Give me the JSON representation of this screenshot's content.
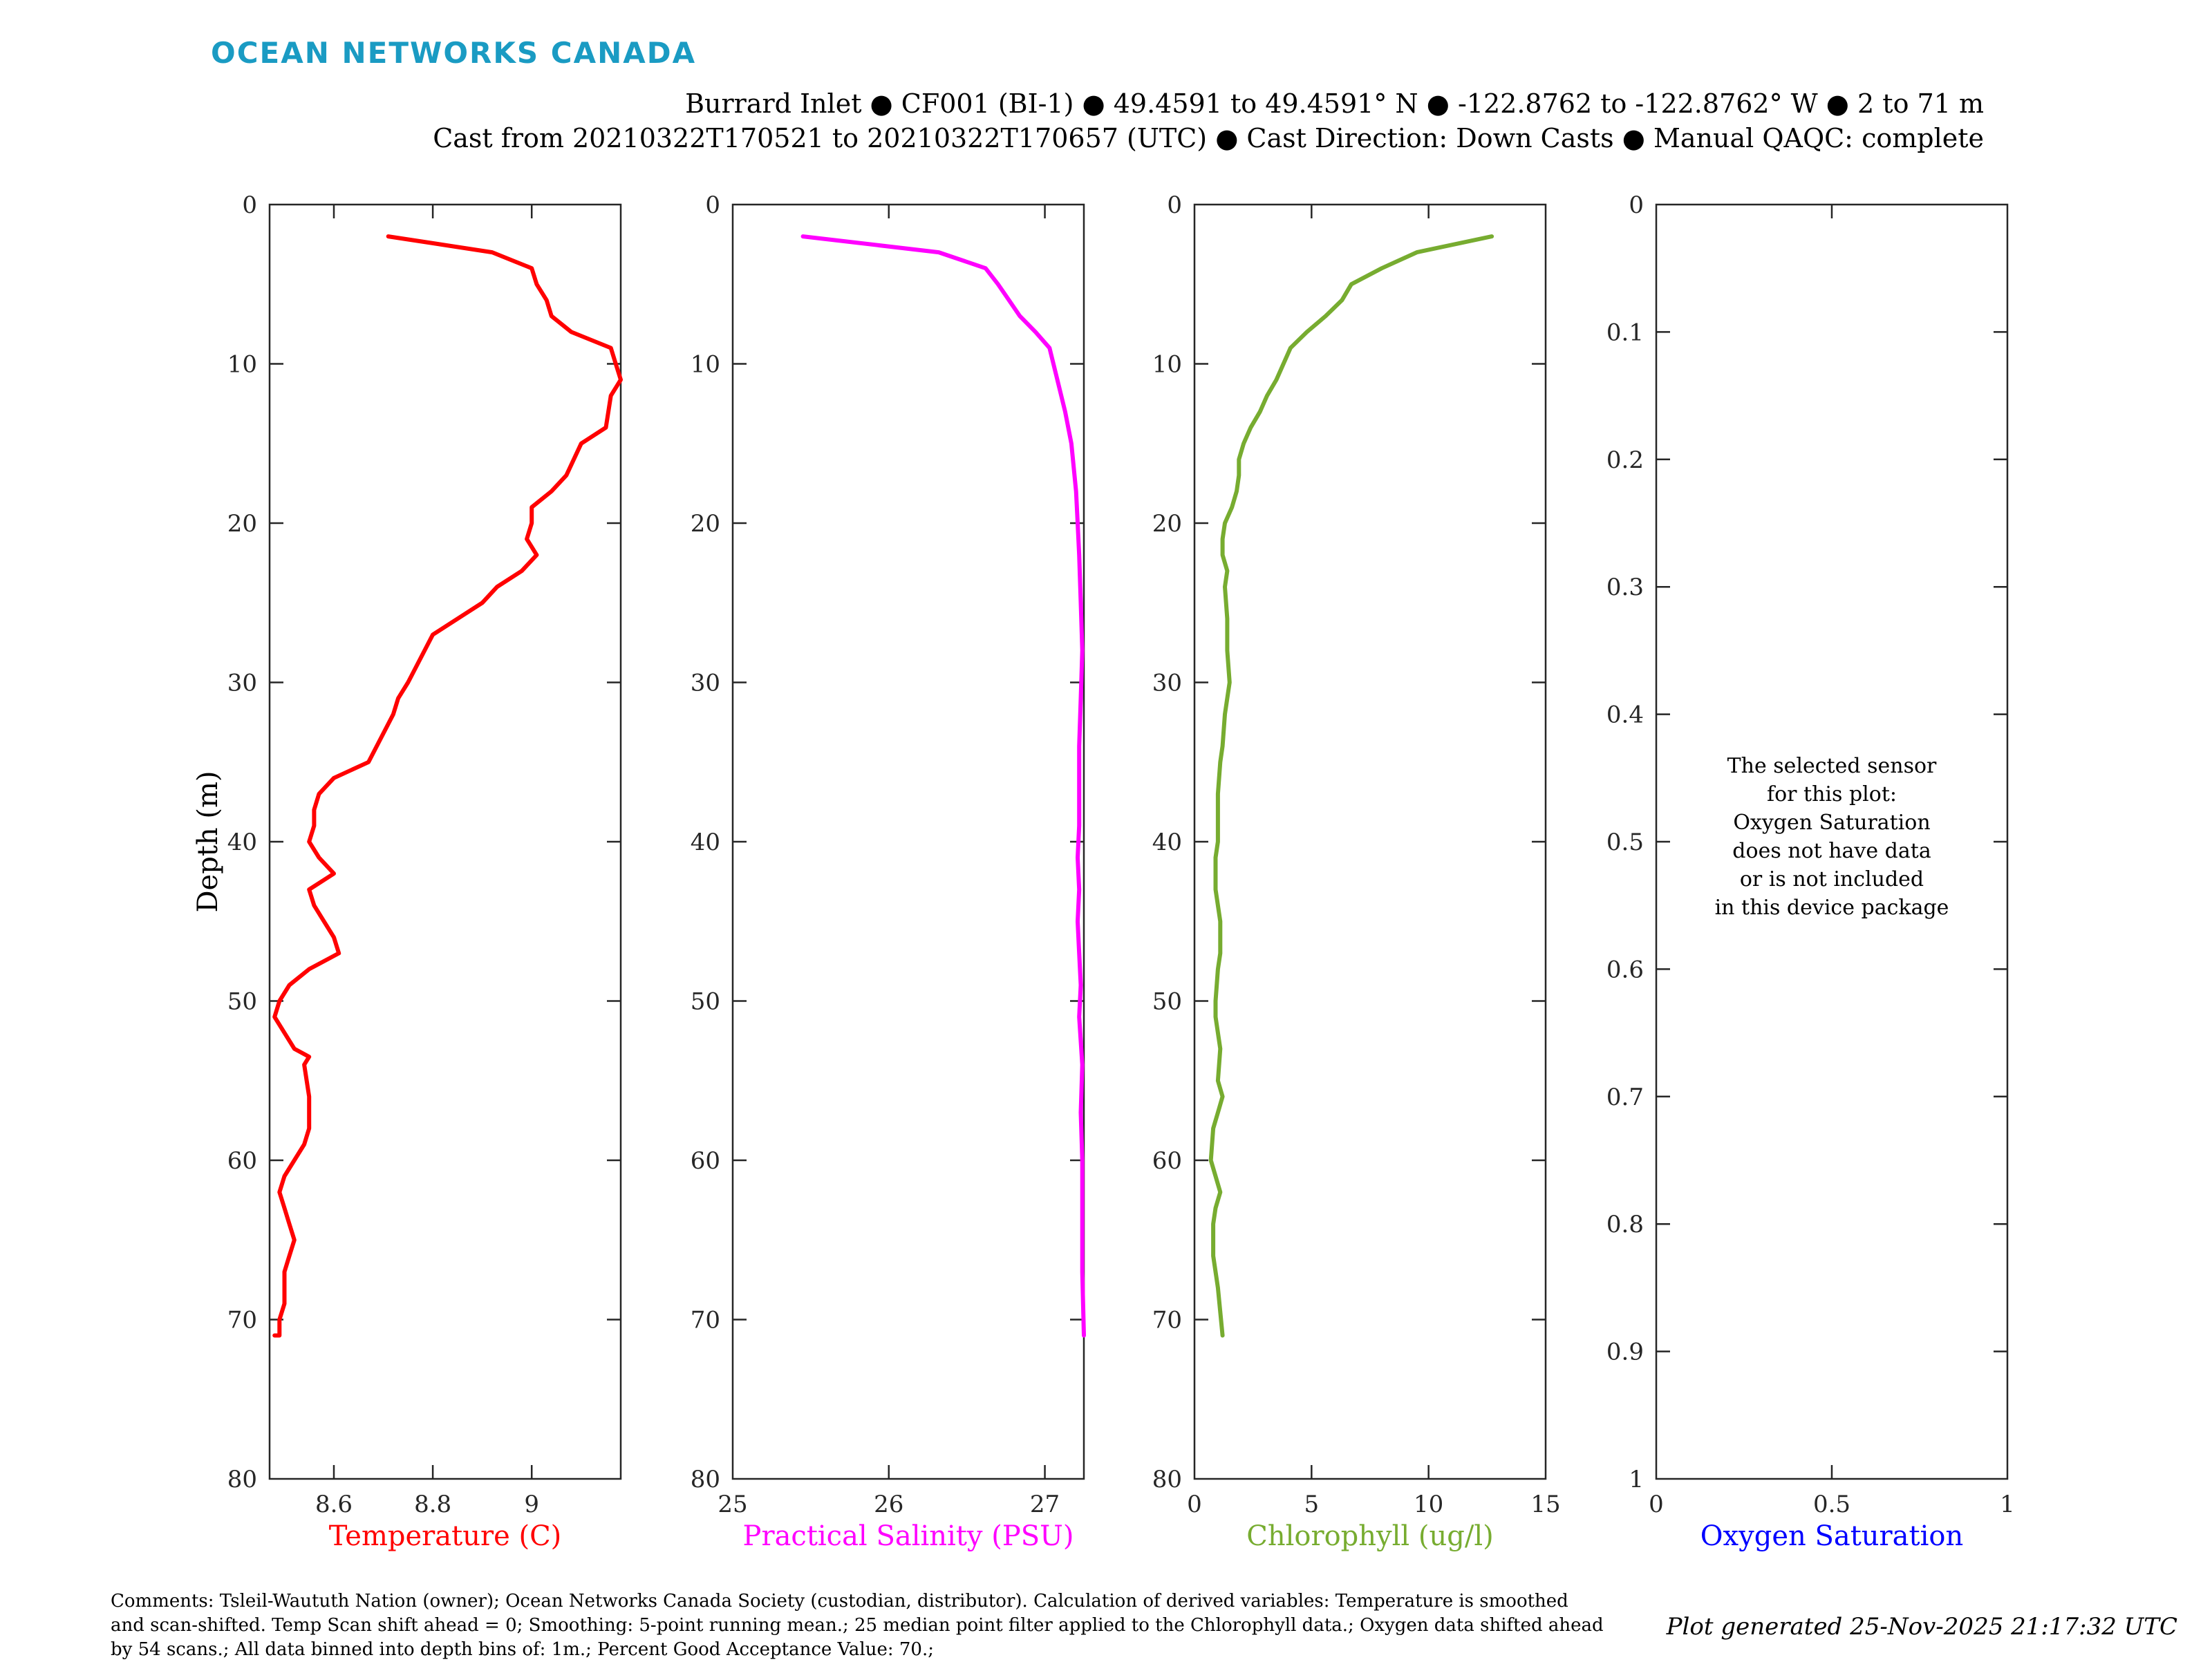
{
  "logo": "OCEAN NETWORKS CANADA",
  "header": {
    "line1": "Burrard Inlet ● CF001 (BI-1) ● 49.4591 to 49.4591° N ● -122.8762 to -122.8762° W ● 2 to 71 m",
    "line2": "Cast from 20210322T170521 to 20210322T170657 (UTC) ● Cast Direction: Down Casts ● Manual QAQC: complete"
  },
  "footer": {
    "comments": "Comments: Tsleil-Waututh Nation (owner); Ocean Networks Canada Society (custodian, distributor). Calculation of derived variables: Temperature is smoothed and scan-shifted. Temp Scan shift ahead = 0; Smoothing: 5-point running mean.; 25 median point filter applied to the Chlorophyll data.; Oxygen data shifted ahead by 54 scans.; All data binned into depth bins of: 1m.; Percent Good Acceptance Value: 70.;",
    "generated": "Plot generated 25-Nov-2025 21:17:32 UTC"
  },
  "nodata_message": [
    "The selected sensor",
    "for this plot:",
    "Oxygen Saturation",
    "does not have data",
    "or is not included",
    "in this device package"
  ],
  "chart_data": [
    {
      "type": "line",
      "xlabel": "Temperature (C)",
      "ylabel": "Depth (m)",
      "color": "#ff0000",
      "xlim": [
        8.47,
        9.18
      ],
      "ylim": [
        0,
        80
      ],
      "y_reversed": true,
      "xticks": [
        8.6,
        8.8,
        9
      ],
      "xtick_labels": [
        "8.6",
        "8.8",
        "9"
      ],
      "yticks": [
        0,
        10,
        20,
        30,
        40,
        50,
        60,
        70,
        80
      ],
      "ytick_labels": [
        "0",
        "10",
        "20",
        "30",
        "40",
        "50",
        "60",
        "70",
        "80"
      ],
      "series": [
        {
          "x": [
            8.71,
            8.92,
            9.0,
            9.01,
            9.03,
            9.04,
            9.08,
            9.16,
            9.17,
            9.18,
            9.16,
            9.15,
            9.1,
            9.07,
            9.04,
            9.0,
            9.0,
            8.99,
            9.01,
            8.98,
            8.93,
            8.9,
            8.8,
            8.75,
            8.73,
            8.72,
            8.67,
            8.6,
            8.57,
            8.56,
            8.56,
            8.55,
            8.57,
            8.6,
            8.55,
            8.56,
            8.58,
            8.6,
            8.61,
            8.55,
            8.51,
            8.49,
            8.48,
            8.5,
            8.52,
            8.55,
            8.54,
            8.55,
            8.55,
            8.55,
            8.54,
            8.52,
            8.5,
            8.49,
            8.5,
            8.51,
            8.52,
            8.51,
            8.5,
            8.5,
            8.5,
            8.49,
            8.49,
            8.48,
            8.48,
            8.48,
            8.48,
            8.49,
            8.48,
            8.48
          ],
          "y": [
            2,
            3,
            4,
            5,
            6,
            7,
            8,
            9,
            10,
            11,
            12,
            14,
            15,
            17,
            18,
            19,
            20,
            21,
            22,
            23,
            24,
            25,
            27,
            30,
            31,
            32,
            35,
            36,
            37,
            38,
            39,
            40,
            41,
            42,
            43,
            44,
            45,
            46,
            47,
            48,
            49,
            50,
            51,
            52,
            53,
            53.5,
            54,
            56,
            57,
            58,
            59,
            60,
            61,
            62,
            63,
            64,
            65,
            66,
            67,
            68,
            69,
            70,
            71,
            71,
            71,
            71,
            71,
            71,
            71,
            71
          ]
        }
      ]
    },
    {
      "type": "line",
      "xlabel": "Practical Salinity (PSU)",
      "color": "#ff00ff",
      "xlim": [
        25,
        27.25
      ],
      "ylim": [
        0,
        80
      ],
      "y_reversed": true,
      "xticks": [
        25,
        26,
        27
      ],
      "xtick_labels": [
        "25",
        "26",
        "27"
      ],
      "yticks": [
        0,
        10,
        20,
        30,
        40,
        50,
        60,
        70,
        80
      ],
      "ytick_labels": [
        "0",
        "10",
        "20",
        "30",
        "40",
        "50",
        "60",
        "70",
        "80"
      ],
      "series": [
        {
          "x": [
            25.45,
            26.32,
            26.62,
            26.7,
            26.77,
            26.84,
            26.94,
            27.03,
            27.08,
            27.13,
            27.17,
            27.2,
            27.21,
            27.22,
            27.23,
            27.24,
            27.23,
            27.22,
            27.22,
            27.22,
            27.21,
            27.22,
            27.21,
            27.22,
            27.23,
            27.22,
            27.24,
            27.23,
            27.24,
            27.24,
            27.24,
            27.25
          ],
          "y": [
            2,
            3,
            4,
            5,
            6,
            7,
            8,
            9,
            11,
            13,
            15,
            18,
            20,
            22,
            25,
            28,
            31,
            34,
            37,
            39,
            41,
            43,
            45,
            47,
            49,
            51,
            54,
            57,
            60,
            64,
            67,
            71
          ]
        }
      ]
    },
    {
      "type": "line",
      "xlabel": "Chlorophyll (ug/l)",
      "color": "#77ac30",
      "xlim": [
        0,
        15
      ],
      "ylim": [
        0,
        80
      ],
      "y_reversed": true,
      "xticks": [
        0,
        5,
        10,
        15
      ],
      "xtick_labels": [
        "0",
        "5",
        "10",
        "15"
      ],
      "yticks": [
        0,
        10,
        20,
        30,
        40,
        50,
        60,
        70,
        80
      ],
      "ytick_labels": [
        "0",
        "10",
        "20",
        "30",
        "40",
        "50",
        "60",
        "70",
        "80"
      ],
      "series": [
        {
          "x": [
            12.7,
            9.5,
            8.0,
            6.7,
            6.3,
            5.6,
            4.8,
            4.1,
            3.8,
            3.5,
            3.1,
            2.8,
            2.4,
            2.1,
            1.9,
            1.9,
            1.8,
            1.6,
            1.3,
            1.2,
            1.2,
            1.4,
            1.3,
            1.4,
            1.4,
            1.5,
            1.4,
            1.3,
            1.2,
            1.1,
            1.0,
            1.0,
            1.0,
            0.9,
            0.9,
            1.0,
            1.1,
            1.1,
            1.0,
            0.9,
            0.9,
            1.0,
            1.1,
            1.0,
            1.2,
            1.0,
            0.8,
            0.7,
            0.9,
            1.1,
            0.9,
            0.8,
            0.8,
            1.0,
            1.2
          ],
          "y": [
            2,
            3,
            4,
            5,
            6,
            7,
            8,
            9,
            10,
            11,
            12,
            13,
            14,
            15,
            16,
            17,
            18,
            19,
            20,
            21,
            22,
            23,
            24,
            26,
            28,
            30,
            31,
            32,
            34,
            35,
            37,
            38,
            40,
            41,
            43,
            44,
            45,
            47,
            48,
            50,
            51,
            52,
            53,
            55,
            56,
            57,
            58,
            60,
            61,
            62,
            63,
            64,
            66,
            68,
            71
          ]
        }
      ]
    },
    {
      "type": "line",
      "xlabel": "Oxygen Saturation",
      "color": "#0000ff",
      "xlim": [
        0,
        1
      ],
      "ylim": [
        0,
        1
      ],
      "y_reversed": true,
      "xticks": [
        0,
        0.5,
        1
      ],
      "xtick_labels": [
        "0",
        "0.5",
        "1"
      ],
      "yticks": [
        0,
        0.1,
        0.2,
        0.3,
        0.4,
        0.5,
        0.6,
        0.7,
        0.8,
        0.9,
        1
      ],
      "ytick_labels": [
        "0",
        "0.1",
        "0.2",
        "0.3",
        "0.4",
        "0.5",
        "0.6",
        "0.7",
        "0.8",
        "0.9",
        "1"
      ],
      "series": []
    }
  ]
}
